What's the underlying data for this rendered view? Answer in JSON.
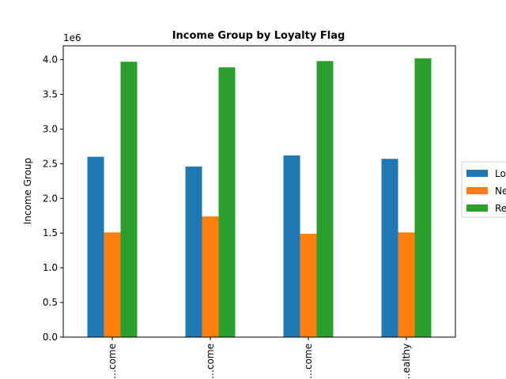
{
  "chart_data": {
    "type": "bar",
    "title": "Income Group by Loyalty Flag",
    "xlabel": "",
    "ylabel": "Income Group",
    "y_offset_label": "1e6",
    "categories": [
      "…come",
      "…come",
      "…come",
      "…ealthy"
    ],
    "series": [
      {
        "name": "Lo…",
        "color": "#1f77b4",
        "values": [
          2600000,
          2460000,
          2620000,
          2570000
        ]
      },
      {
        "name": "Ne…",
        "color": "#ff7f0e",
        "values": [
          1510000,
          1740000,
          1490000,
          1510000
        ]
      },
      {
        "name": "Re…",
        "color": "#2ca02c",
        "values": [
          3970000,
          3890000,
          3980000,
          4020000
        ]
      }
    ],
    "ylim": [
      0,
      4200000
    ],
    "yticks": [
      "0.0",
      "0.5",
      "1.0",
      "1.5",
      "2.0",
      "2.5",
      "3.0",
      "3.5",
      "4.0"
    ],
    "grid": false,
    "legend_position": "center-right"
  }
}
